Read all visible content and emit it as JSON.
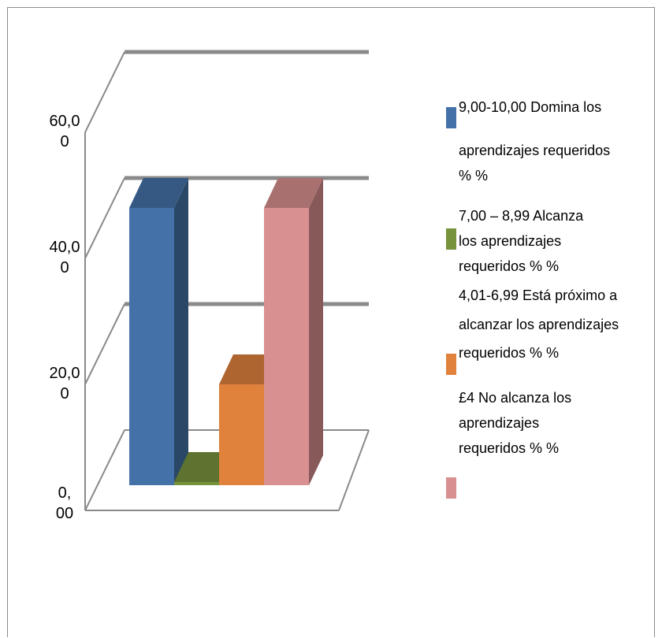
{
  "chart_data": {
    "type": "bar",
    "categories": [
      ""
    ],
    "series": [
      {
        "name": "9,00-10,00 Domina los aprendizajes requeridos % %",
        "values": [
          44.0
        ],
        "color": "#4472a8"
      },
      {
        "name": "7,00 – 8,99 Alcanza los aprendizajes requeridos % %",
        "values": [
          0.5
        ],
        "color": "#77933c"
      },
      {
        "name": "4,01-6,99 Está próximo a alcanzar los aprendizajes requeridos % %",
        "values": [
          16.0
        ],
        "color": "#e0823c"
      },
      {
        "name": "£4 No alcanza los aprendizajes requeridos % %",
        "values": [
          44.0
        ],
        "color": "#d99090"
      }
    ],
    "ylim": [
      0,
      60
    ],
    "yticks": [
      {
        "value": 0,
        "label": [
          "0,",
          "00"
        ]
      },
      {
        "value": 20,
        "label": [
          "20,0",
          "0"
        ]
      },
      {
        "value": 40,
        "label": [
          "40,0",
          "0"
        ]
      },
      {
        "value": 60,
        "label": [
          "60,0",
          "0"
        ]
      }
    ],
    "grid": true,
    "projection": "3d",
    "legend_position": "right"
  },
  "legend": {
    "items": [
      {
        "lines": [
          "9,00-10,00 Domina los",
          "aprendizajes requeridos",
          "% %"
        ],
        "color": "#4472a8"
      },
      {
        "lines": [
          "7,00 – 8,99 Alcanza",
          "los aprendizajes",
          "requeridos % %"
        ],
        "color": "#77933c"
      },
      {
        "lines": [
          "4,01-6,99 Está próximo a",
          "alcanzar los aprendizajes",
          "requeridos % %"
        ],
        "color": "#e0823c"
      },
      {
        "lines": [
          "£4 No alcanza los",
          "aprendizajes",
          "requeridos % %"
        ],
        "color": "#d99090"
      }
    ]
  }
}
